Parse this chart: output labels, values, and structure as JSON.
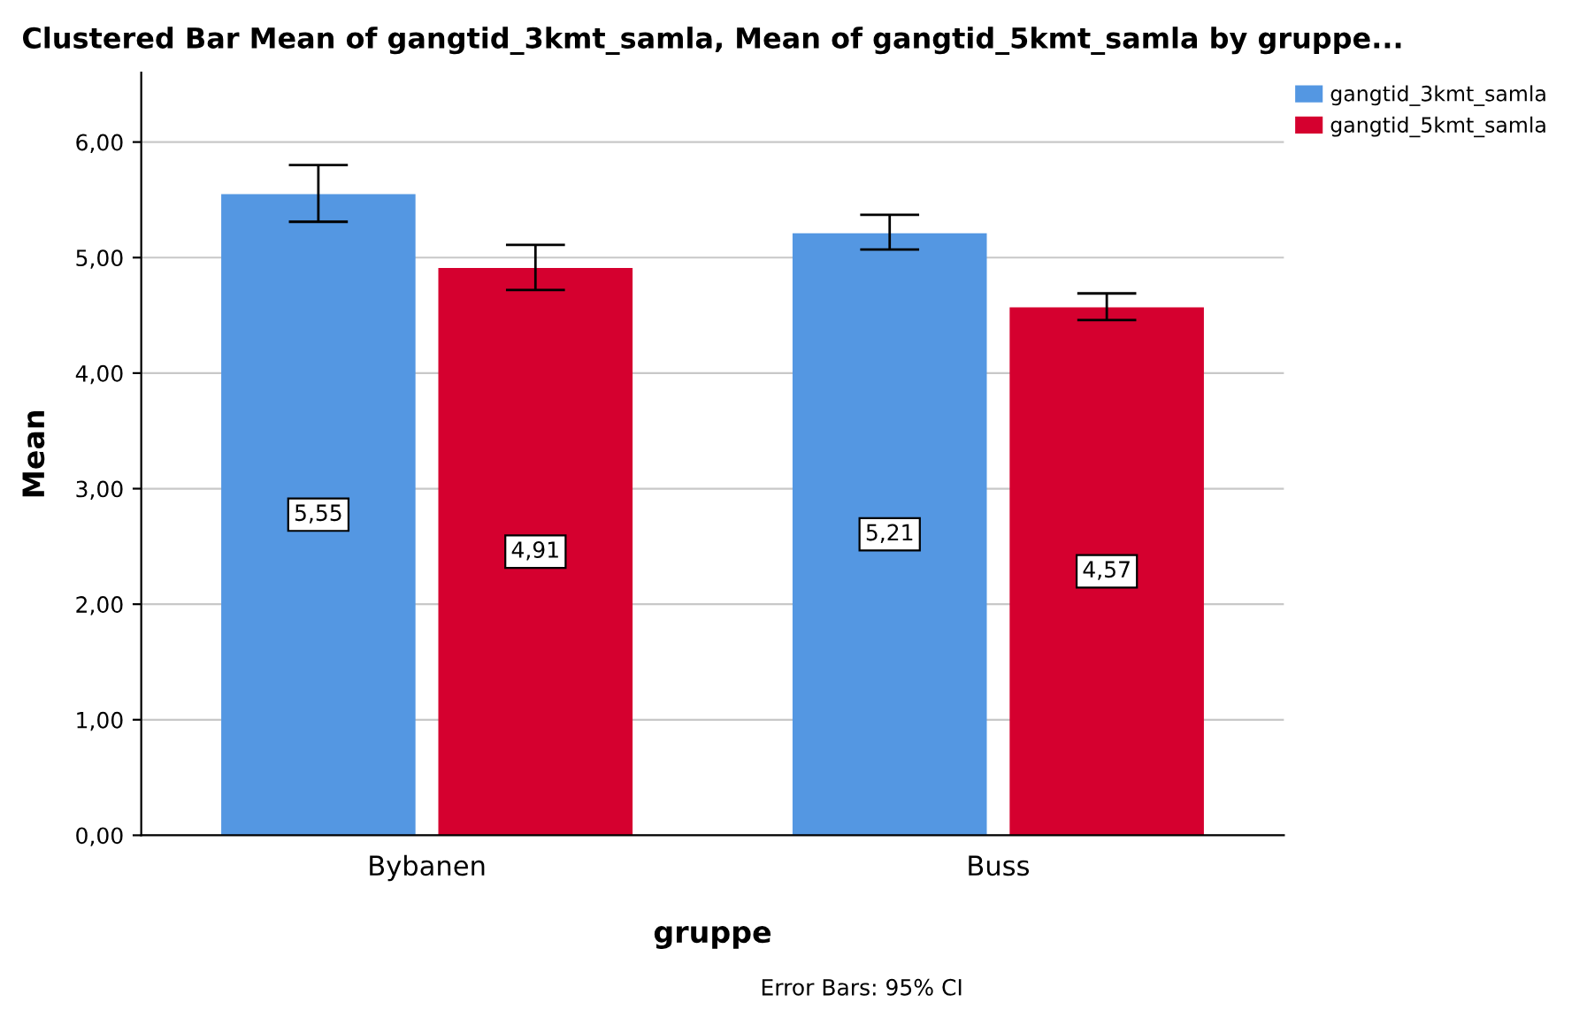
{
  "chart_data": {
    "type": "bar",
    "title": "Clustered Bar Mean of gangtid_3kmt_samla, Mean of gangtid_5kmt_samla by gruppe...",
    "xlabel": "gruppe",
    "ylabel": "Mean",
    "categories": [
      "Bybanen",
      "Buss"
    ],
    "series": [
      {
        "name": "gangtid_3kmt_samla",
        "color": "#5497e2",
        "values": [
          5.55,
          5.21
        ],
        "value_labels": [
          "5,55",
          "5,21"
        ],
        "errors": [
          [
            5.31,
            5.8
          ],
          [
            5.07,
            5.37
          ]
        ]
      },
      {
        "name": "gangtid_5kmt_samla",
        "color": "#d5002f",
        "values": [
          4.91,
          4.57
        ],
        "value_labels": [
          "4,91",
          "4,57"
        ],
        "errors": [
          [
            4.72,
            5.11
          ],
          [
            4.46,
            4.69
          ]
        ]
      }
    ],
    "ylim": [
      0,
      6.6
    ],
    "yticks": [
      {
        "value": 0,
        "label": "0,00"
      },
      {
        "value": 1,
        "label": "1,00"
      },
      {
        "value": 2,
        "label": "2,00"
      },
      {
        "value": 3,
        "label": "3,00"
      },
      {
        "value": 4,
        "label": "4,00"
      },
      {
        "value": 5,
        "label": "5,00"
      },
      {
        "value": 6,
        "label": "6,00"
      }
    ],
    "grid": "y",
    "legend": "top right",
    "annotations": [
      "Error Bars: 95% CI"
    ]
  }
}
